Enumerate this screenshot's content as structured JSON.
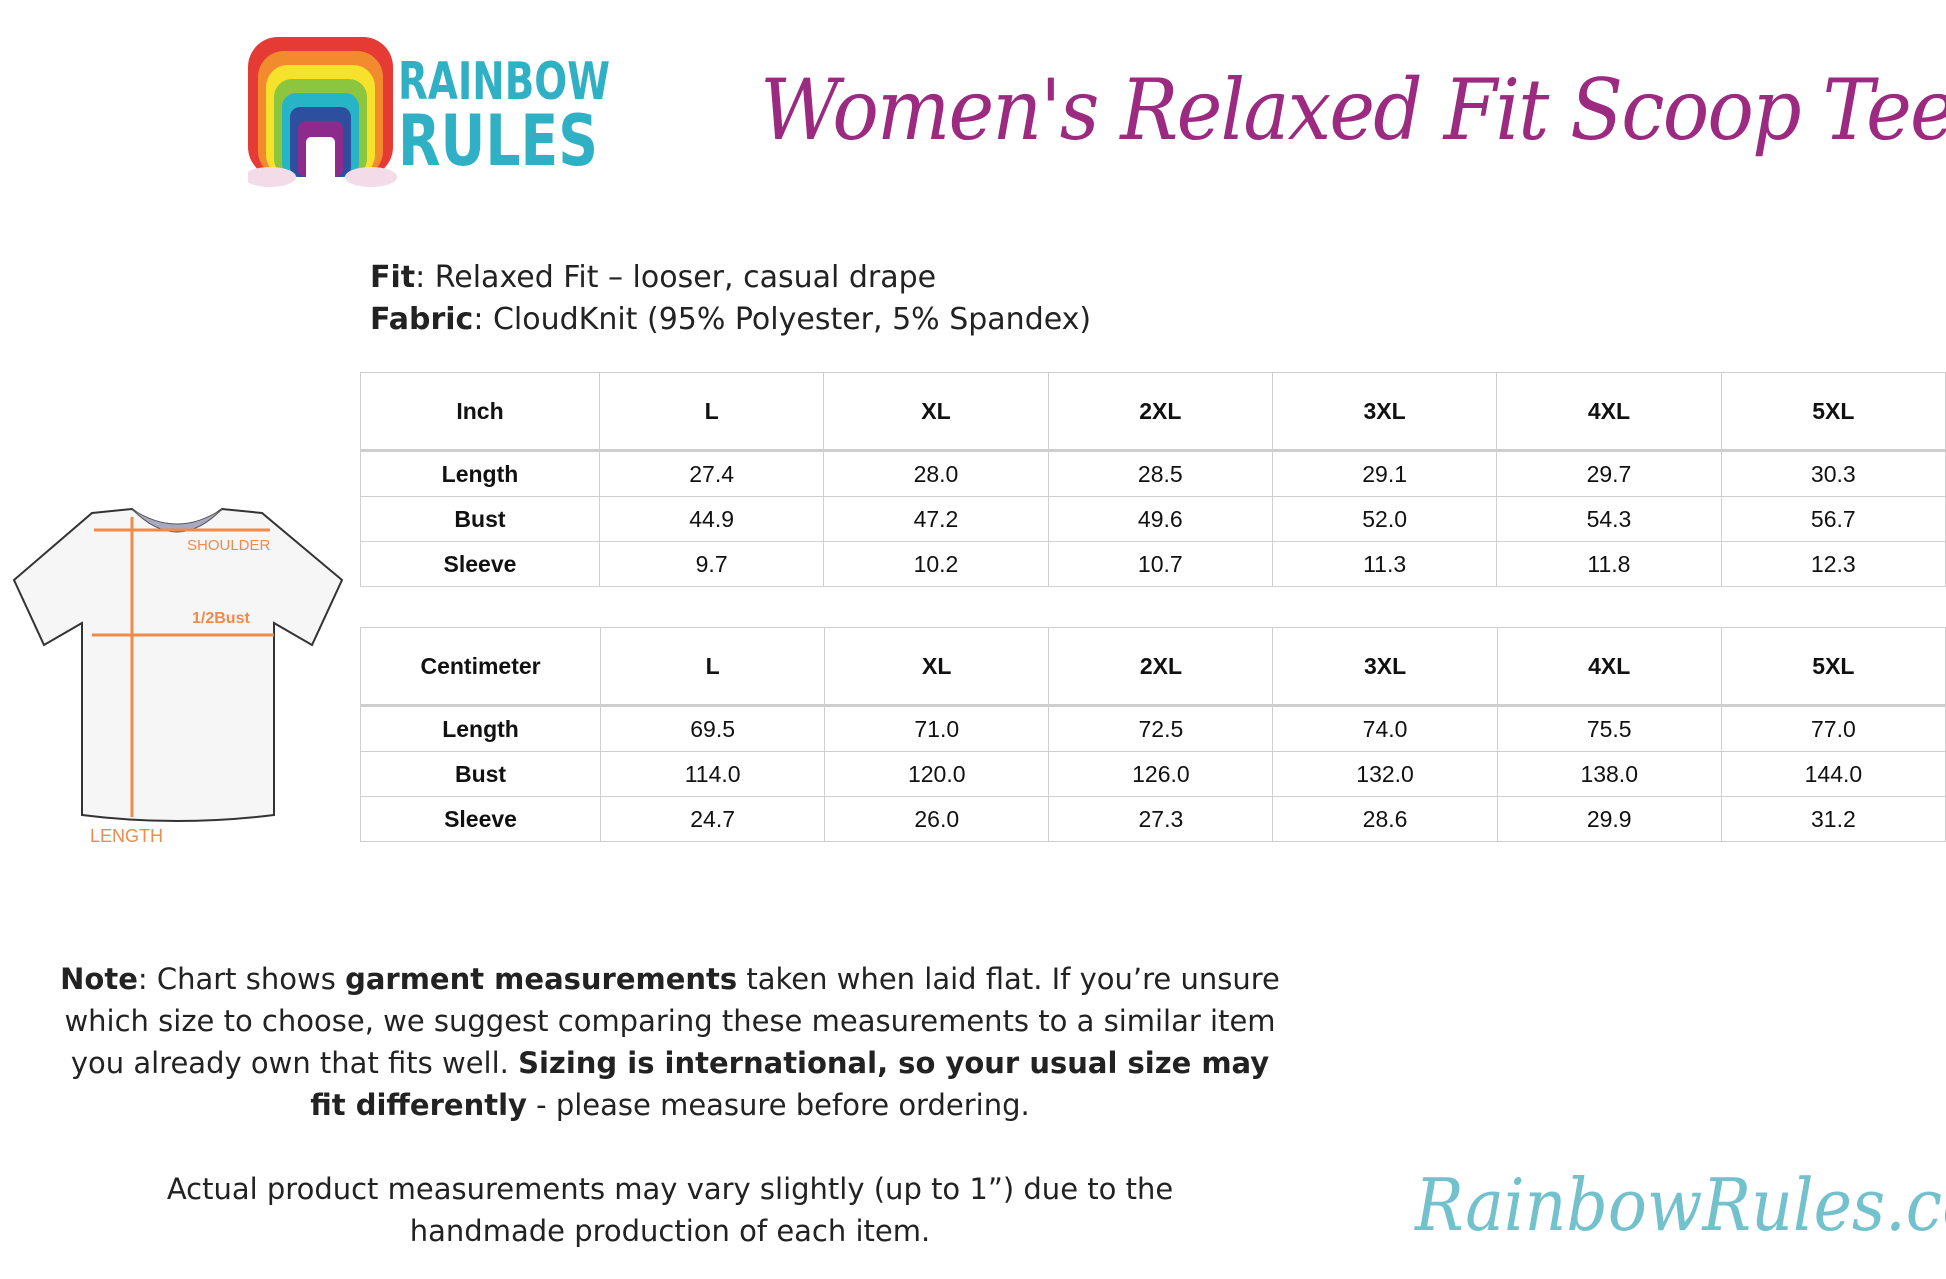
{
  "brand": {
    "logo_text": "RAINBOW RULES",
    "website": "RainbowRules.com",
    "accent": "#9b2a80",
    "brand_teal": "#2fb0c4"
  },
  "title": "Women's Relaxed Fit Scoop Tee",
  "specs": {
    "fit_label": "Fit",
    "fit_value": ": Relaxed Fit – looser, casual drape",
    "fabric_label": "Fabric",
    "fabric_value": ": CloudKnit (95% Polyester, 5% Spandex)"
  },
  "diagram": {
    "shoulder": "SHOULDER",
    "half_bust": "1/2Bust",
    "length": "LENGTH"
  },
  "tables": [
    {
      "unit": "Inch",
      "sizes": [
        "L",
        "XL",
        "2XL",
        "3XL",
        "4XL",
        "5XL"
      ],
      "rows": [
        {
          "label": "Length",
          "values": [
            "27.4",
            "28.0",
            "28.5",
            "29.1",
            "29.7",
            "30.3"
          ]
        },
        {
          "label": "Bust",
          "values": [
            "44.9",
            "47.2",
            "49.6",
            "52.0",
            "54.3",
            "56.7"
          ]
        },
        {
          "label": "Sleeve",
          "values": [
            "9.7",
            "10.2",
            "10.7",
            "11.3",
            "11.8",
            "12.3"
          ]
        }
      ]
    },
    {
      "unit": "Centimeter",
      "sizes": [
        "L",
        "XL",
        "2XL",
        "3XL",
        "4XL",
        "5XL"
      ],
      "rows": [
        {
          "label": "Length",
          "values": [
            "69.5",
            "71.0",
            "72.5",
            "74.0",
            "75.5",
            "77.0"
          ]
        },
        {
          "label": "Bust",
          "values": [
            "114.0",
            "120.0",
            "126.0",
            "132.0",
            "138.0",
            "144.0"
          ]
        },
        {
          "label": "Sleeve",
          "values": [
            "24.7",
            "26.0",
            "27.3",
            "28.6",
            "29.9",
            "31.2"
          ]
        }
      ]
    }
  ],
  "note": {
    "label": "Note",
    "t1": ": Chart shows ",
    "b1": "garment measurements",
    "t2": " taken when laid flat. If you’re unsure which size to choose, we suggest comparing these measurements to a similar item you already own that fits well. ",
    "b2": "Sizing is international, so your usual size may fit differently",
    "t3": " - please measure before ordering."
  },
  "disclaimer": "Actual product measurements may vary slightly (up to 1”) due to the handmade production of each item."
}
